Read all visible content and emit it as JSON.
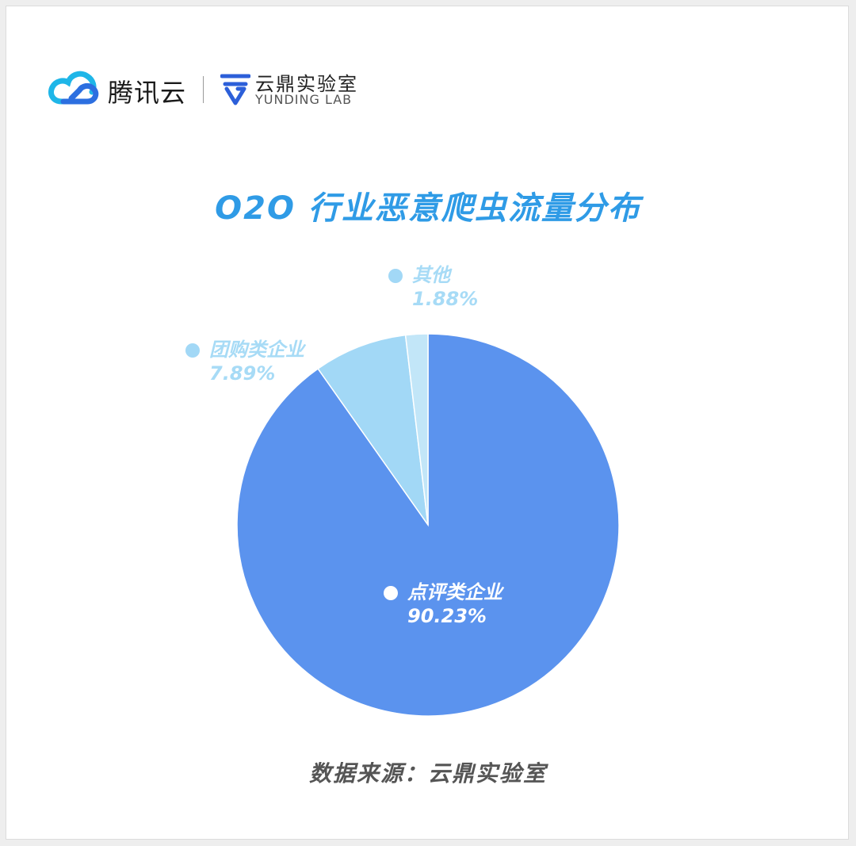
{
  "brand": {
    "name": "腾讯云",
    "lab_cn": "云鼎实验室",
    "lab_en": "YUNDING LAB"
  },
  "chart_data": {
    "type": "pie",
    "title": "O2O 行业恶意爬虫流量分布",
    "slices": [
      {
        "label": "点评类企业",
        "value": 90.23,
        "display": "90.23%",
        "color": "#5b93ee",
        "label_color": "#ffffff",
        "dot_color": "#ffffff"
      },
      {
        "label": "团购类企业",
        "value": 7.89,
        "display": "7.89%",
        "color": "#a2d8f6",
        "label_color": "#a7dbf6",
        "dot_color": "#a2d8f6"
      },
      {
        "label": "其他",
        "value": 1.88,
        "display": "1.88%",
        "color": "#c2e6f8",
        "label_color": "#a7dbf6",
        "dot_color": "#a2d8f6"
      }
    ],
    "source": "数据来源：云鼎实验室"
  },
  "colors": {
    "title": "#2f9be6",
    "logo_cloud_a": "#1fb6e8",
    "logo_cloud_b": "#2c6fe0",
    "lab_icon": "#2c5fd9"
  },
  "icons": {
    "brand_logo": "tencent-cloud-icon",
    "lab_logo": "yunding-lab-icon"
  }
}
